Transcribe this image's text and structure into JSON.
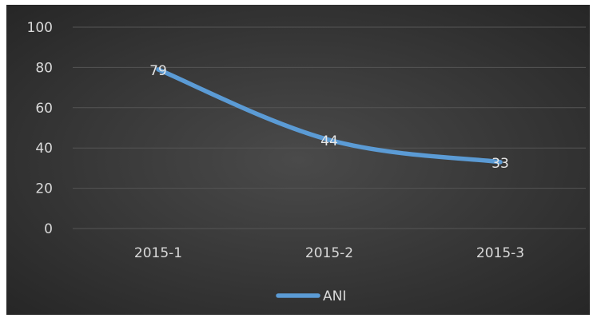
{
  "chart_data": {
    "type": "line",
    "title": "",
    "xlabel": "",
    "ylabel": "",
    "categories": [
      "2015-1",
      "2015-2",
      "2015-3"
    ],
    "series": [
      {
        "name": "ANI",
        "values": [
          79,
          44,
          33
        ],
        "color": "#5b9bd5"
      }
    ],
    "ylim": [
      0,
      100
    ],
    "yticks": [
      "0",
      "20",
      "40",
      "60",
      "80",
      "100"
    ],
    "data_labels": [
      "79",
      "44",
      "33"
    ],
    "grid": true,
    "legend": {
      "position": "bottom",
      "entries": [
        "ANI"
      ]
    }
  }
}
